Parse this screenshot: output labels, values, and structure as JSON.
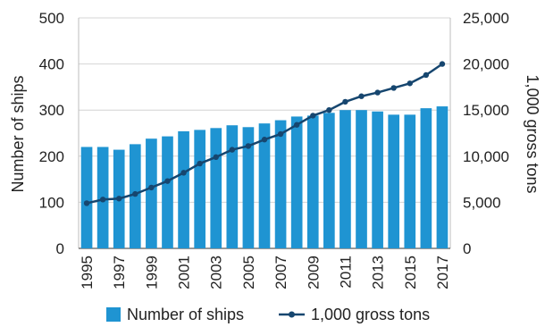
{
  "chart_data": {
    "type": "bar",
    "categories": [
      1995,
      1996,
      1997,
      1998,
      1999,
      2000,
      2001,
      2002,
      2003,
      2004,
      2005,
      2006,
      2007,
      2008,
      2009,
      2010,
      2011,
      2012,
      2013,
      2014,
      2015,
      2016,
      2017
    ],
    "x_tick_labels": [
      "1995",
      "1997",
      "1999",
      "2001",
      "2003",
      "2005",
      "2007",
      "2009",
      "2011",
      "2013",
      "2015",
      "2017"
    ],
    "series": [
      {
        "name": "Number of ships",
        "type": "bar",
        "axis": "left",
        "color": "#1f94d2",
        "values": [
          220,
          220,
          214,
          226,
          238,
          243,
          254,
          257,
          261,
          267,
          263,
          271,
          278,
          286,
          288,
          294,
          300,
          300,
          297,
          290,
          290,
          304,
          308
        ]
      },
      {
        "name": "1,000 gross tons",
        "type": "line",
        "axis": "right",
        "color": "#16466f",
        "values": [
          4900,
          5300,
          5400,
          5900,
          6600,
          7300,
          8200,
          9200,
          9900,
          10700,
          11100,
          11800,
          12400,
          13400,
          14400,
          15000,
          15900,
          16500,
          16900,
          17400,
          17900,
          18800,
          20000
        ]
      }
    ],
    "y_left": {
      "label": "Number of ships",
      "ylim": [
        0,
        500
      ],
      "ticks": [
        "0",
        "100",
        "200",
        "300",
        "400",
        "500"
      ]
    },
    "y_right": {
      "label": "1,000 gross tons",
      "ylim": [
        0,
        25000
      ],
      "ticks": [
        "0",
        "5,000",
        "10,000",
        "15,000",
        "20,000",
        "25,000"
      ]
    },
    "grid": true,
    "legend_position": "bottom-center"
  }
}
